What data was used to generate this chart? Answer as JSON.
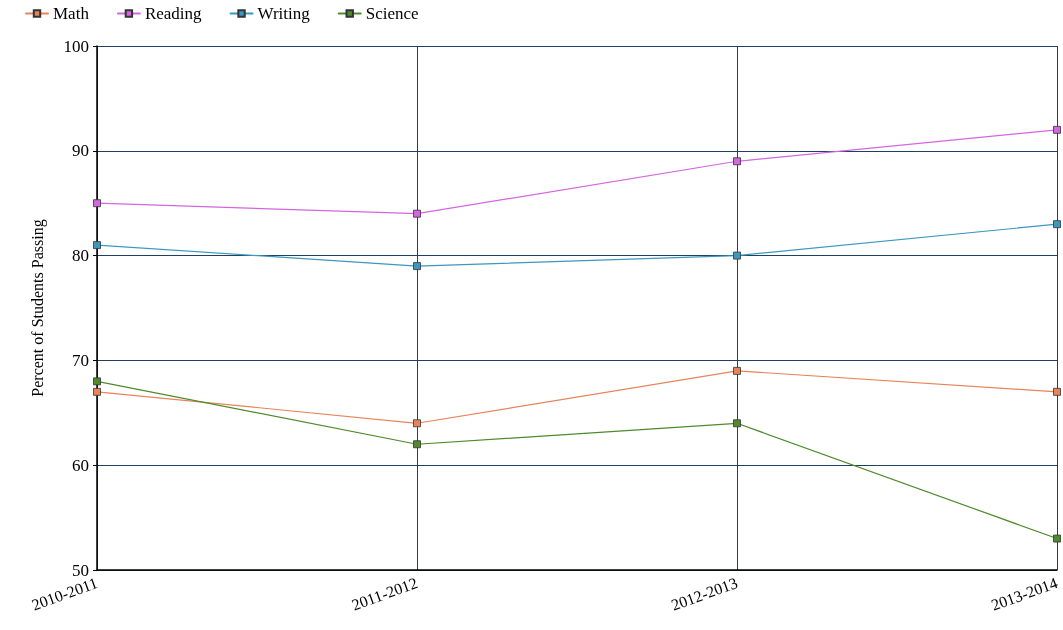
{
  "chart_data": {
    "type": "line",
    "ylabel": "Percent of Students Passing",
    "categories": [
      "2010-2011",
      "2011-2012",
      "2012-2013",
      "2013-2014"
    ],
    "series": [
      {
        "name": "Math",
        "color": "#e8845c",
        "values": [
          67,
          64,
          69,
          67
        ]
      },
      {
        "name": "Reading",
        "color": "#d466e0",
        "values": [
          85,
          84,
          89,
          92
        ]
      },
      {
        "name": "Writing",
        "color": "#3b98bf",
        "values": [
          81,
          79,
          80,
          83
        ]
      },
      {
        "name": "Science",
        "color": "#4f8a2c",
        "values": [
          68,
          62,
          64,
          53
        ]
      }
    ],
    "ylim": [
      50,
      100
    ],
    "yticks": [
      50,
      60,
      70,
      80,
      90,
      100
    ],
    "grid": true,
    "legend": "top left",
    "marker": "square",
    "line_style": "solid"
  }
}
